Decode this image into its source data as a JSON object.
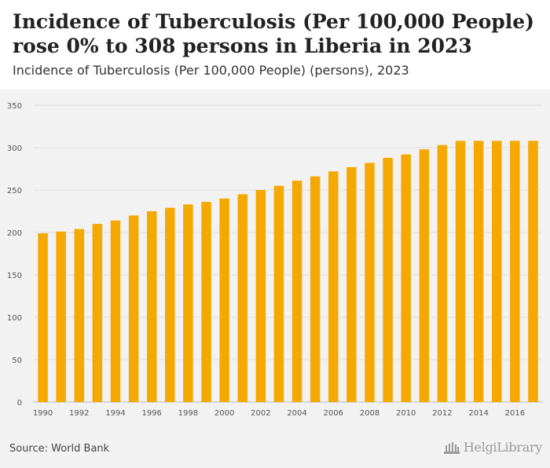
{
  "header": {
    "title": "Incidence of Tuberculosis (Per 100,000 People) rose 0% to 308 persons in Liberia in 2023",
    "subtitle": "Incidence of Tuberculosis (Per 100,000 People) (persons), 2023"
  },
  "footer": {
    "source": "Source: World Bank",
    "logo_text": "HelgiLibrary"
  },
  "colors": {
    "bar": "#f5a800",
    "grid": "#dddddd",
    "axis_text": "#555555"
  },
  "chart_data": {
    "type": "bar",
    "categories": [
      "1990",
      "1991",
      "1992",
      "1993",
      "1994",
      "1995",
      "1996",
      "1997",
      "1998",
      "1999",
      "2000",
      "2001",
      "2002",
      "2003",
      "2004",
      "2005",
      "2006",
      "2007",
      "2008",
      "2009",
      "2010",
      "2011",
      "2012",
      "2013",
      "2014",
      "2015",
      "2016",
      "2017"
    ],
    "values": [
      199,
      201,
      204,
      210,
      214,
      220,
      225,
      229,
      233,
      236,
      240,
      245,
      250,
      255,
      261,
      266,
      272,
      277,
      282,
      288,
      292,
      298,
      303,
      308,
      308,
      308,
      308,
      308
    ],
    "x_tick_labels": [
      "1990",
      "1992",
      "1994",
      "1996",
      "1998",
      "2000",
      "2002",
      "2004",
      "2006",
      "2008",
      "2010",
      "2012",
      "2014",
      "2016"
    ],
    "y_ticks": [
      0,
      50,
      100,
      150,
      200,
      250,
      300,
      350
    ],
    "ylim": [
      0,
      350
    ],
    "title": "Incidence of Tuberculosis (Per 100,000 People) rose 0% to 308 persons in Liberia in 2023",
    "subtitle": "Incidence of Tuberculosis (Per 100,000 People) (persons), 2023",
    "xlabel": "",
    "ylabel": "",
    "grid": true,
    "legend": "none"
  }
}
